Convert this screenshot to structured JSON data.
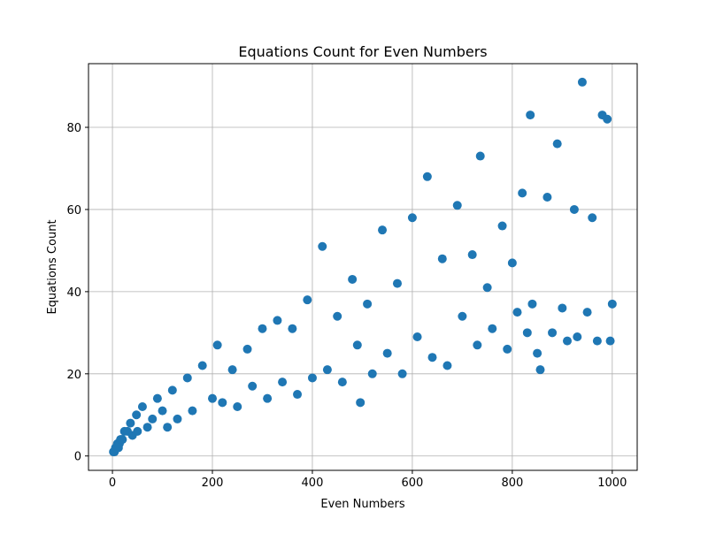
{
  "chart_data": {
    "type": "scatter",
    "title": "Equations Count for Even Numbers",
    "xlabel": "Even Numbers",
    "ylabel": "Equations Count",
    "color": "#1f77b4",
    "grid": true,
    "xlim": [
      -47.9,
      1049.9
    ],
    "ylim": [
      -3.5,
      95.5
    ],
    "xticks": [
      0,
      200,
      400,
      600,
      800,
      1000
    ],
    "yticks": [
      0,
      20,
      40,
      60,
      80
    ],
    "x": [
      2,
      4,
      6,
      8,
      10,
      12,
      14,
      16,
      18,
      20,
      24,
      30,
      36,
      40,
      48,
      50,
      60,
      70,
      80,
      90,
      100,
      110,
      120,
      130,
      150,
      160,
      180,
      200,
      210,
      220,
      240,
      250,
      270,
      280,
      300,
      310,
      330,
      340,
      360,
      370,
      390,
      400,
      420,
      430,
      450,
      460,
      480,
      490,
      496,
      510,
      520,
      540,
      550,
      570,
      580,
      600,
      610,
      630,
      640,
      660,
      670,
      690,
      700,
      720,
      730,
      736,
      750,
      760,
      780,
      790,
      800,
      810,
      820,
      830,
      836,
      840,
      850,
      856,
      870,
      880,
      890,
      900,
      910,
      924,
      930,
      940,
      950,
      960,
      970,
      980,
      990,
      996,
      1000
    ],
    "values": [
      1,
      1,
      2,
      2,
      3,
      2,
      3,
      4,
      4,
      4,
      6,
      6,
      8,
      5,
      10,
      6,
      12,
      7,
      9,
      14,
      11,
      7,
      16,
      9,
      19,
      11,
      22,
      14,
      27,
      13,
      21,
      12,
      26,
      17,
      31,
      14,
      33,
      18,
      31,
      15,
      38,
      19,
      51,
      21,
      34,
      18,
      43,
      27,
      13,
      37,
      20,
      55,
      25,
      42,
      20,
      58,
      29,
      68,
      24,
      48,
      22,
      61,
      34,
      49,
      27,
      73,
      41,
      31,
      56,
      26,
      47,
      35,
      64,
      30,
      83,
      37,
      25,
      21,
      63,
      30,
      76,
      36,
      28,
      60,
      29,
      91,
      35,
      58,
      28,
      83,
      82,
      28,
      37
    ]
  }
}
